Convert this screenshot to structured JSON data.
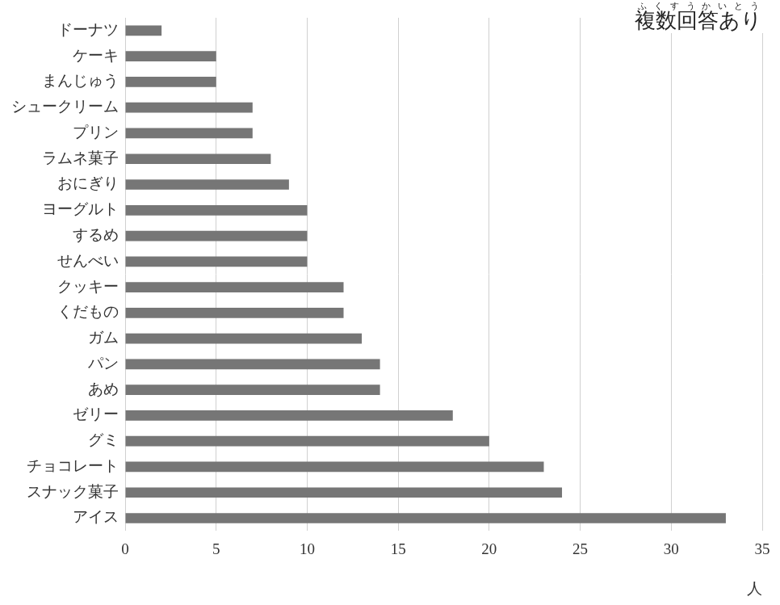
{
  "chart_data": {
    "type": "bar",
    "orientation": "horizontal",
    "categories": [
      "ドーナツ",
      "ケーキ",
      "まんじゅう",
      "シュークリーム",
      "プリン",
      "ラムネ菓子",
      "おにぎり",
      "ヨーグルト",
      "するめ",
      "せんべい",
      "クッキー",
      "くだもの",
      "ガム",
      "パン",
      "あめ",
      "ゼリー",
      "グミ",
      "チョコレート",
      "スナック菓子",
      "アイス"
    ],
    "values": [
      2,
      5,
      5,
      7,
      7,
      8,
      9,
      10,
      10,
      10,
      12,
      12,
      13,
      14,
      14,
      18,
      20,
      23,
      24,
      33
    ],
    "color": "#767676",
    "x_label": "人",
    "xlim": [
      0,
      35
    ],
    "xticks": [
      0,
      5,
      10,
      15,
      20,
      25,
      30,
      35
    ],
    "grid": true,
    "annotations": [
      {
        "text": "複数回答あり",
        "ruby": "ふくすうかいとう"
      }
    ]
  }
}
